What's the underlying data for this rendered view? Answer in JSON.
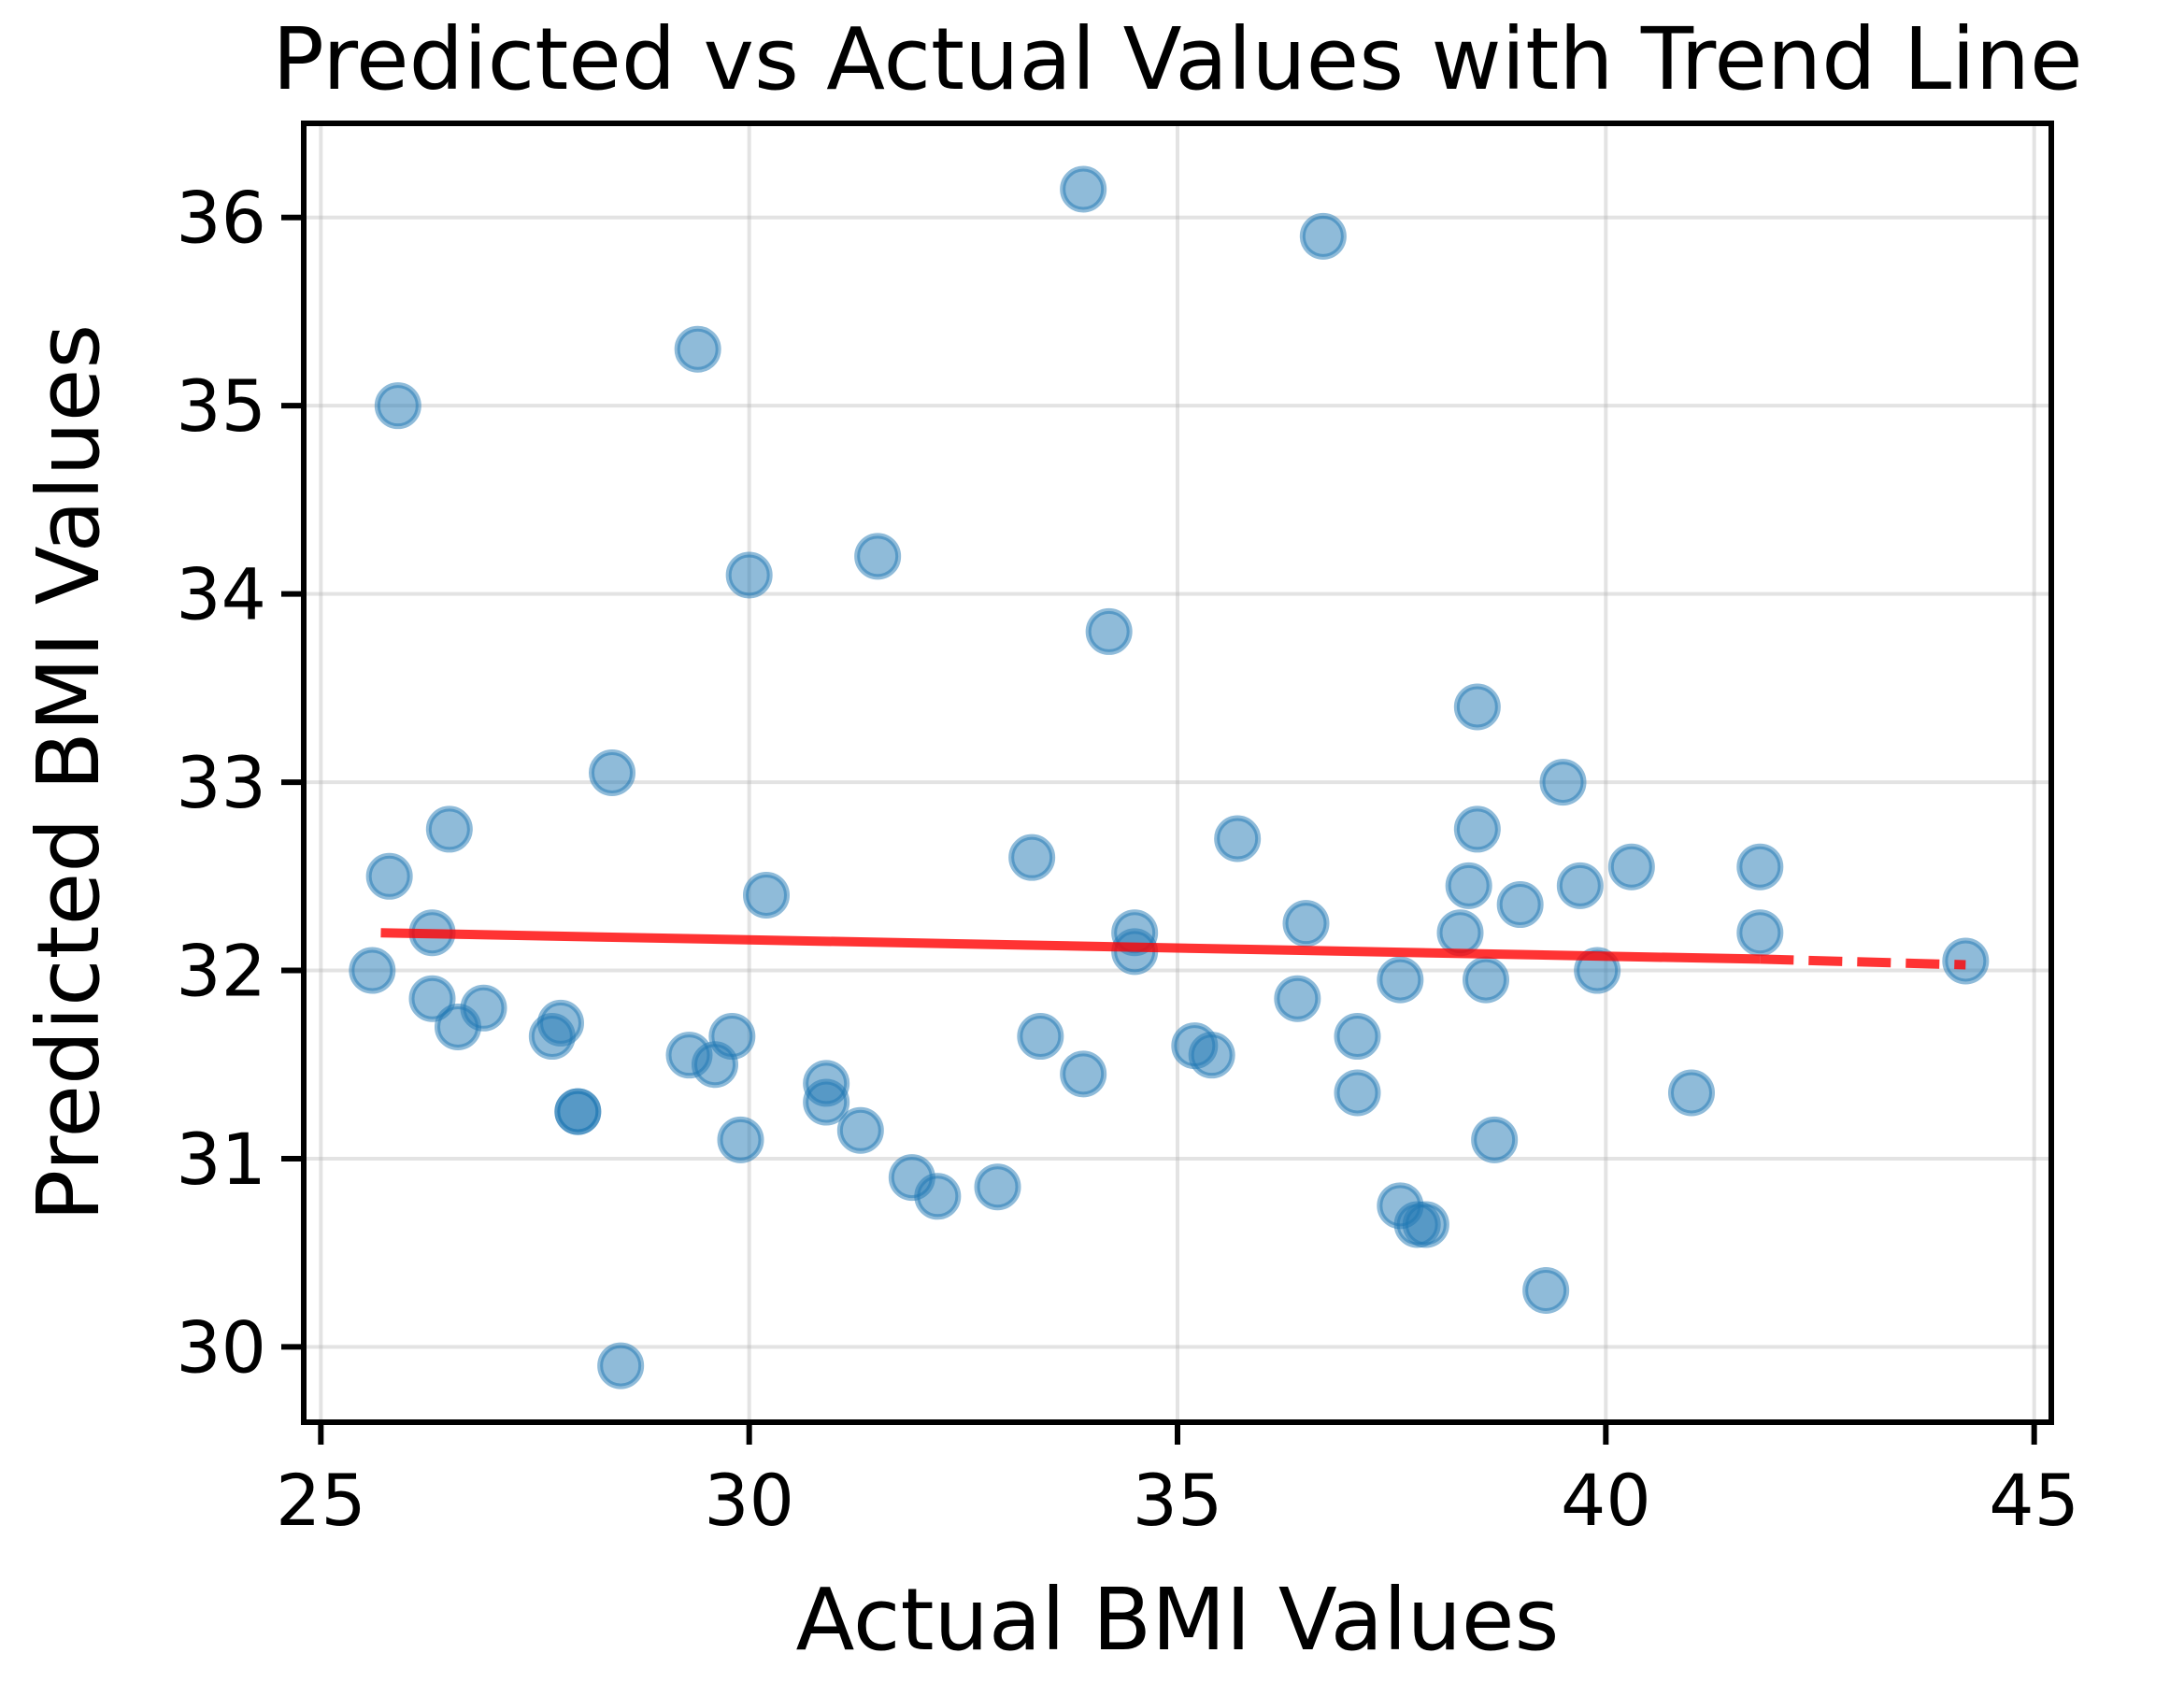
{
  "chart_data": {
    "type": "scatter",
    "title": "Predicted vs Actual Values with Trend Line",
    "xlabel": "Actual BMI Values",
    "ylabel": "Predicted BMI Values",
    "xlim": [
      24.8,
      45.2
    ],
    "ylim": [
      29.6,
      36.5
    ],
    "xticks": [
      25,
      30,
      35,
      40,
      45
    ],
    "yticks": [
      30,
      31,
      32,
      33,
      34,
      35,
      36
    ],
    "grid": true,
    "colors": {
      "points": "#1f77b4",
      "trend": "#ff0000"
    },
    "points": [
      {
        "x": 25.6,
        "y": 32.0
      },
      {
        "x": 25.8,
        "y": 32.5
      },
      {
        "x": 25.9,
        "y": 35.0
      },
      {
        "x": 26.3,
        "y": 32.2
      },
      {
        "x": 26.3,
        "y": 31.85
      },
      {
        "x": 26.5,
        "y": 32.75
      },
      {
        "x": 26.6,
        "y": 31.7
      },
      {
        "x": 26.9,
        "y": 31.8
      },
      {
        "x": 27.7,
        "y": 31.65
      },
      {
        "x": 27.8,
        "y": 31.72
      },
      {
        "x": 28.0,
        "y": 31.25
      },
      {
        "x": 28.0,
        "y": 31.25
      },
      {
        "x": 28.4,
        "y": 33.05
      },
      {
        "x": 28.5,
        "y": 29.9
      },
      {
        "x": 29.3,
        "y": 31.55
      },
      {
        "x": 29.4,
        "y": 35.3
      },
      {
        "x": 29.6,
        "y": 31.5
      },
      {
        "x": 29.8,
        "y": 31.65
      },
      {
        "x": 29.9,
        "y": 31.1
      },
      {
        "x": 30.0,
        "y": 34.1
      },
      {
        "x": 30.2,
        "y": 32.4
      },
      {
        "x": 30.9,
        "y": 31.4
      },
      {
        "x": 30.9,
        "y": 31.3
      },
      {
        "x": 31.3,
        "y": 31.15
      },
      {
        "x": 31.5,
        "y": 34.2
      },
      {
        "x": 31.9,
        "y": 30.9
      },
      {
        "x": 32.2,
        "y": 30.8
      },
      {
        "x": 32.9,
        "y": 30.85
      },
      {
        "x": 33.3,
        "y": 32.6
      },
      {
        "x": 33.4,
        "y": 31.65
      },
      {
        "x": 33.9,
        "y": 36.15
      },
      {
        "x": 33.9,
        "y": 31.45
      },
      {
        "x": 34.2,
        "y": 33.8
      },
      {
        "x": 34.5,
        "y": 32.2
      },
      {
        "x": 34.5,
        "y": 32.1
      },
      {
        "x": 35.2,
        "y": 31.6
      },
      {
        "x": 35.4,
        "y": 31.55
      },
      {
        "x": 35.7,
        "y": 32.7
      },
      {
        "x": 36.4,
        "y": 31.85
      },
      {
        "x": 36.5,
        "y": 32.25
      },
      {
        "x": 36.7,
        "y": 35.9
      },
      {
        "x": 37.1,
        "y": 31.35
      },
      {
        "x": 37.1,
        "y": 31.65
      },
      {
        "x": 37.6,
        "y": 31.95
      },
      {
        "x": 37.6,
        "y": 30.75
      },
      {
        "x": 37.8,
        "y": 30.65
      },
      {
        "x": 37.9,
        "y": 30.65
      },
      {
        "x": 38.3,
        "y": 32.2
      },
      {
        "x": 38.4,
        "y": 32.45
      },
      {
        "x": 38.5,
        "y": 33.4
      },
      {
        "x": 38.5,
        "y": 32.75
      },
      {
        "x": 38.6,
        "y": 31.95
      },
      {
        "x": 38.7,
        "y": 31.1
      },
      {
        "x": 39.0,
        "y": 32.35
      },
      {
        "x": 39.3,
        "y": 30.3
      },
      {
        "x": 39.5,
        "y": 33.0
      },
      {
        "x": 39.7,
        "y": 32.45
      },
      {
        "x": 39.9,
        "y": 32.0
      },
      {
        "x": 40.3,
        "y": 32.55
      },
      {
        "x": 41.0,
        "y": 31.35
      },
      {
        "x": 41.8,
        "y": 32.55
      },
      {
        "x": 41.8,
        "y": 32.2
      },
      {
        "x": 44.2,
        "y": 32.05
      }
    ],
    "trend_line": {
      "solid": {
        "x": [
          25.7,
          41.8
        ],
        "y": [
          32.2,
          32.06
        ]
      },
      "dashed": {
        "x": [
          41.8,
          44.2
        ],
        "y": [
          32.06,
          32.03
        ]
      }
    }
  }
}
